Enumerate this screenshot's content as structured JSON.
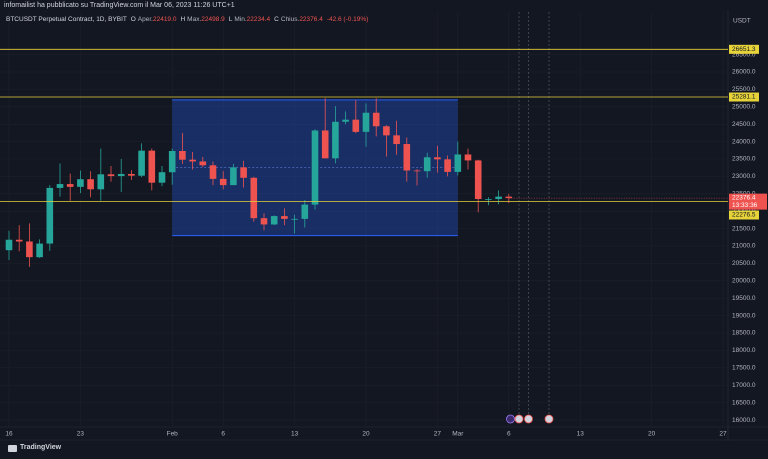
{
  "header": "infomailist ha pubblicato su TradingView.com il Mar 06, 2023 11:26 UTC+1",
  "footer": "TradingView",
  "chart_data": {
    "type": "candlestick",
    "currency": "USDT",
    "legend": {
      "symbol": "BTCUSDT Perpetual Contract, 1D, BYBIT",
      "items": [
        {
          "key": "O",
          "label": "Aper.",
          "value": "22419.0"
        },
        {
          "key": "H",
          "label": "Max.",
          "value": "22498.9"
        },
        {
          "key": "L",
          "label": "Min.",
          "value": "22234.4"
        },
        {
          "key": "C",
          "label": "Chius.",
          "value": "22376.4"
        }
      ],
      "change": "-42.6 (-0.19%)"
    },
    "categories": [
      "16",
      null,
      null,
      null,
      null,
      null,
      null,
      "23",
      null,
      null,
      null,
      null,
      null,
      null,
      null,
      null,
      "Feb",
      null,
      null,
      null,
      null,
      "6",
      null,
      null,
      null,
      null,
      null,
      null,
      "13",
      null,
      null,
      null,
      null,
      null,
      null,
      "20",
      null,
      null,
      null,
      null,
      null,
      null,
      "27",
      null,
      "Mar",
      null,
      null,
      null,
      null,
      "6",
      null,
      null,
      null,
      null,
      null,
      null,
      "13",
      null,
      null,
      null,
      null,
      null,
      null,
      "20",
      null,
      null,
      null,
      null,
      null,
      null,
      "27"
    ],
    "open": [
      20880,
      21180,
      21130,
      20680,
      21070,
      22670,
      22780,
      22700,
      22920,
      22630,
      23060,
      23010,
      23070,
      23020,
      23740,
      22820,
      23120,
      23730,
      23480,
      23430,
      23320,
      22930,
      22750,
      23260,
      22960,
      21800,
      21620,
      21860,
      21780,
      21780,
      22190,
      24320,
      23520,
      24570,
      24630,
      24280,
      24830,
      24440,
      24180,
      23930,
      23170,
      23150,
      23550,
      23490,
      23130,
      23630,
      23460,
      22350,
      22350,
      22419,
      null,
      null,
      null,
      null,
      null,
      null,
      null,
      null,
      null,
      null,
      null,
      null,
      null,
      null,
      null,
      null,
      null,
      null,
      null,
      null,
      null
    ],
    "high": [
      21440,
      21600,
      21650,
      21190,
      22750,
      23370,
      23080,
      23170,
      23150,
      23800,
      23300,
      23500,
      23180,
      23950,
      23800,
      23300,
      23800,
      24250,
      23700,
      23560,
      23430,
      23150,
      23360,
      23450,
      22990,
      21940,
      21880,
      22080,
      21900,
      22320,
      24350,
      25250,
      25020,
      24870,
      25190,
      25100,
      25250,
      24470,
      24600,
      24120,
      23210,
      23680,
      23880,
      23600,
      24000,
      23800,
      23480,
      22400,
      22600,
      22498.9,
      null,
      null,
      null,
      null,
      null,
      null,
      null,
      null,
      null,
      null,
      null,
      null,
      null,
      null,
      null,
      null,
      null,
      null,
      null,
      null,
      null
    ],
    "low": [
      20600,
      20850,
      20400,
      20660,
      20860,
      22420,
      22300,
      22520,
      22400,
      22300,
      22850,
      22550,
      22900,
      22980,
      22600,
      22720,
      22760,
      23360,
      23200,
      23270,
      22750,
      22630,
      22750,
      22680,
      21700,
      21450,
      21600,
      21600,
      21360,
      21530,
      22050,
      23520,
      23380,
      24500,
      24240,
      23850,
      24150,
      23570,
      23620,
      22850,
      22740,
      22960,
      23110,
      23000,
      23030,
      23200,
      21970,
      22170,
      22200,
      22234.4,
      null,
      null,
      null,
      null,
      null,
      null,
      null,
      null,
      null,
      null,
      null,
      null,
      null,
      null,
      null,
      null,
      null,
      null,
      null,
      null,
      null
    ],
    "close": [
      21180,
      21130,
      20680,
      21070,
      22670,
      22780,
      22700,
      22920,
      22630,
      23060,
      23010,
      23070,
      23020,
      23740,
      22820,
      23120,
      23730,
      23480,
      23430,
      23320,
      22930,
      22750,
      23260,
      22960,
      21800,
      21620,
      21860,
      21780,
      21780,
      22190,
      24320,
      23520,
      24570,
      24630,
      24280,
      24830,
      24440,
      24180,
      23930,
      23170,
      23150,
      23550,
      23490,
      23130,
      23630,
      23460,
      22350,
      22350,
      22419,
      22376.4,
      null,
      null,
      null,
      null,
      null,
      null,
      null,
      null,
      null,
      null,
      null,
      null,
      null,
      null,
      null,
      null,
      null,
      null,
      null,
      null,
      null
    ],
    "up_color": "#26a69a",
    "down_color": "#ef5350",
    "ylim": [
      15800,
      27724
    ],
    "yticks": [
      {
        "value": 16000,
        "label": "16000.0"
      },
      {
        "value": 16500,
        "label": "16500.0"
      },
      {
        "value": 17000,
        "label": "17000.0"
      },
      {
        "value": 17500,
        "label": "17500.0"
      },
      {
        "value": 18000,
        "label": "18000.0"
      },
      {
        "value": 18500,
        "label": "18500.0"
      },
      {
        "value": 19000,
        "label": "19000.0"
      },
      {
        "value": 19500,
        "label": "19500.0"
      },
      {
        "value": 20000,
        "label": "20000.0"
      },
      {
        "value": 20500,
        "label": "20500.0"
      },
      {
        "value": 21000,
        "label": "21000.0"
      },
      {
        "value": 21500,
        "label": "21500.0"
      },
      {
        "value": 22000,
        "label": "22000.0"
      },
      {
        "value": 22500,
        "label": "22500.0"
      },
      {
        "value": 23000,
        "label": "23000.0"
      },
      {
        "value": 23500,
        "label": "23500.0"
      },
      {
        "value": 24000,
        "label": "24000.0"
      },
      {
        "value": 24500,
        "label": "24500.0"
      },
      {
        "value": 25000,
        "label": "25000.0"
      },
      {
        "value": 25500,
        "label": "25500.0"
      },
      {
        "value": 26000,
        "label": "26000.0"
      },
      {
        "value": 26500,
        "label": "26500.0"
      }
    ],
    "grid": true,
    "hlines": [
      {
        "value": 26651.3,
        "label": "26651.3"
      },
      {
        "value": 25281.1,
        "label": "25281.1"
      },
      {
        "value": 22276.5,
        "label": "22276.5"
      }
    ],
    "hline_color": "#e6d33a",
    "current_price": {
      "value": 22376.4,
      "label": "22376.4",
      "countdown": "13:33:36"
    },
    "box": {
      "ylim": [
        21300,
        25200
      ],
      "color": "#2962ff"
    }
  }
}
